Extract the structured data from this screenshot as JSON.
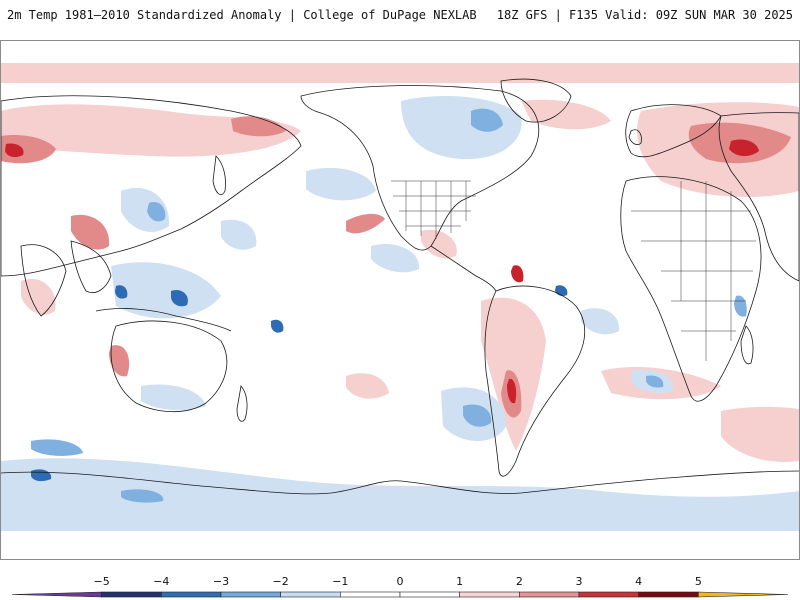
{
  "header": {
    "left_title": "2m Temp 1981–2010 Standardized Anomaly | College of DuPage NEXLAB",
    "right_title": "18Z GFS | F135 Valid: 09Z SUN MAR 30 2025"
  },
  "colorbar": {
    "min": -6,
    "max": 6,
    "ticks": [
      "−5",
      "−4",
      "−3",
      "−2",
      "−1",
      "0",
      "1",
      "2",
      "3",
      "4",
      "5"
    ],
    "tick_values": [
      -5,
      -4,
      -3,
      -2,
      -1,
      0,
      1,
      2,
      3,
      4,
      5
    ],
    "bins": [
      {
        "from": -5,
        "to": -4,
        "color": "#24336e"
      },
      {
        "from": -4,
        "to": -3,
        "color": "#2f6fb8"
      },
      {
        "from": -3,
        "to": -2,
        "color": "#74a9dc"
      },
      {
        "from": -2,
        "to": -1,
        "color": "#c6dcf2"
      },
      {
        "from": -1,
        "to": 0,
        "color": "#ffffff"
      },
      {
        "from": 0,
        "to": 1,
        "color": "#ffffff"
      },
      {
        "from": 1,
        "to": 2,
        "color": "#f7d3d3"
      },
      {
        "from": 2,
        "to": 3,
        "color": "#e59393"
      },
      {
        "from": 3,
        "to": 4,
        "color": "#c9323a"
      },
      {
        "from": 4,
        "to": 5,
        "color": "#7a0a12"
      }
    ],
    "under_color": "#6a3a9a",
    "over_color": "#f2b71c"
  },
  "map": {
    "warm_color": "#f6cfcf",
    "warm_strong_color": "#e28a8a",
    "warm_peak_color": "#c8232c",
    "cool_color": "#cfe0f3",
    "cool_strong_color": "#7fb0df",
    "cool_peak_color": "#2d6cb5",
    "coast_color": "#1a1a1a"
  }
}
